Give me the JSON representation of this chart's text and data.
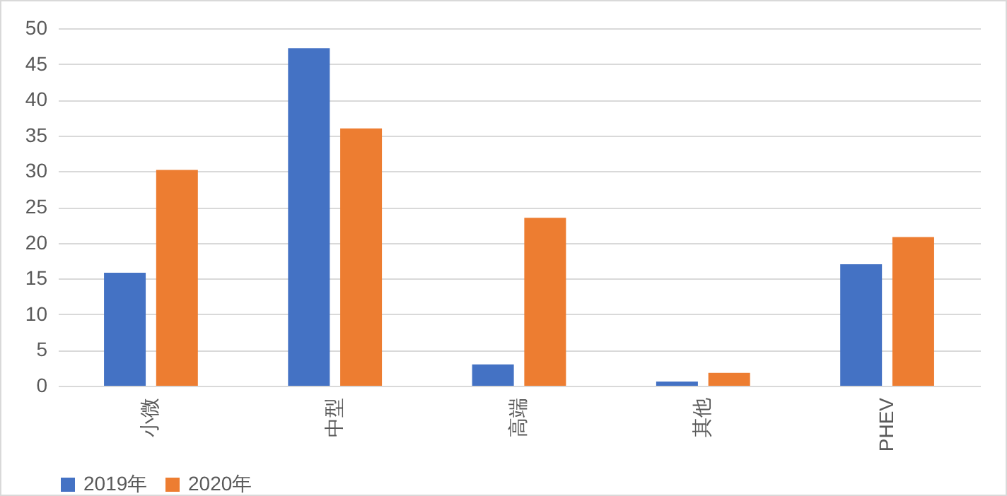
{
  "chart_data": {
    "type": "bar",
    "categories": [
      "小微",
      "中型",
      "高端",
      "其他",
      "PHEV"
    ],
    "series": [
      {
        "name": "2019年",
        "color": "#4472c4",
        "values": [
          15.8,
          47.2,
          3.0,
          0.6,
          17.0
        ]
      },
      {
        "name": "2020年",
        "color": "#ed7d31",
        "values": [
          30.2,
          36.0,
          23.5,
          1.8,
          20.8
        ]
      }
    ],
    "ylim": [
      0,
      50
    ],
    "yticks": [
      0,
      5,
      10,
      15,
      20,
      25,
      30,
      35,
      40,
      45,
      50
    ],
    "grid": "y",
    "legend": "bottom"
  }
}
